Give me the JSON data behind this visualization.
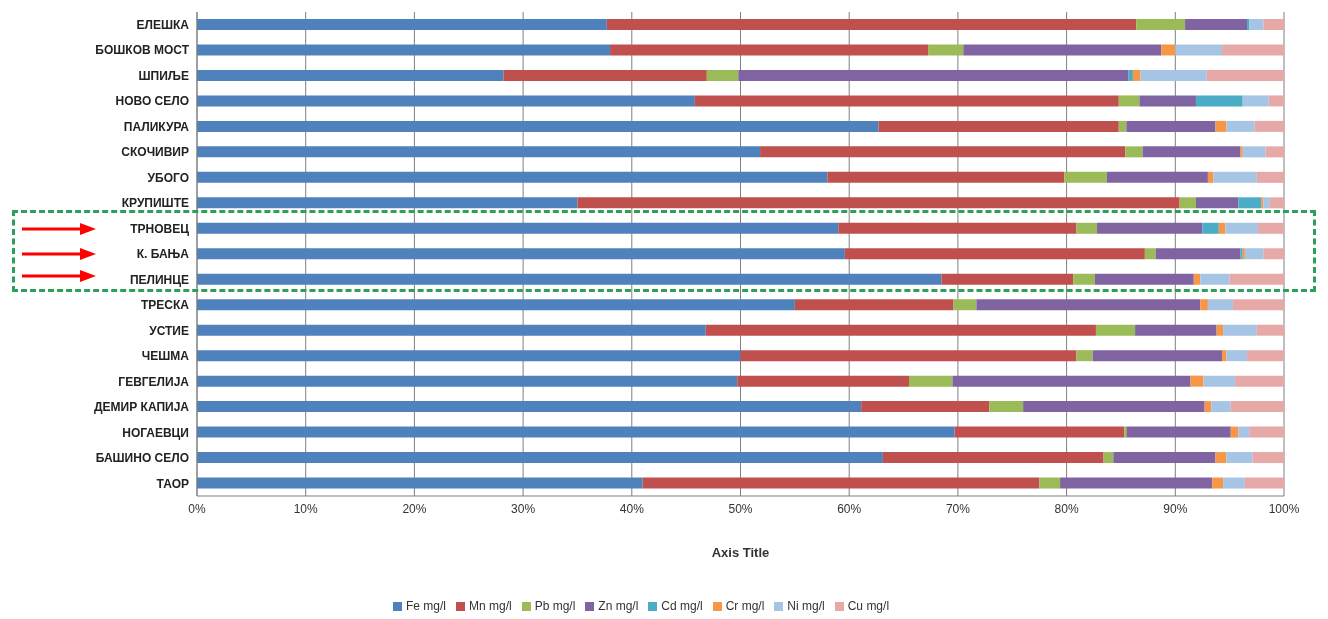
{
  "chart_data": {
    "type": "bar",
    "orientation": "horizontal",
    "stacked": true,
    "xlabel": "Axis Title",
    "categories": [
      "ЕЛЕШКА",
      "БОШКОВ МОСТ",
      "ШПИЉЕ",
      "НОВО СЕЛО",
      "ПАЛИКУРА",
      "СКОЧИВИР",
      "УБОГО",
      "КРУПИШТЕ",
      "ТРНОВЕЦ",
      "К. БАЊА",
      "ПЕЛИНЦЕ",
      "ТРЕСКА",
      "УСТИЕ",
      "ЧЕШМА",
      "ГЕВГЕЛИЈА",
      "ДЕМИР КАПИЈА",
      "НОГАЕВЦИ",
      "БАШИНО СЕЛО",
      "ТАОР"
    ],
    "series": [
      {
        "name": "Fe mg/l",
        "color": "#4f81bd",
        "values": [
          37.7,
          38.0,
          28.2,
          45.8,
          62.7,
          51.8,
          58.0,
          35.0,
          59.0,
          59.6,
          68.5,
          55.0,
          46.8,
          50.0,
          49.7,
          61.1,
          69.7,
          63.1,
          41.0
        ]
      },
      {
        "name": "Mn mg/l",
        "color": "#c0504d",
        "values": [
          48.7,
          29.3,
          18.7,
          39.0,
          22.1,
          33.6,
          21.8,
          55.4,
          21.9,
          27.6,
          12.1,
          14.6,
          35.9,
          30.9,
          15.8,
          11.8,
          15.6,
          20.3,
          36.5
        ]
      },
      {
        "name": "Pb mg/l",
        "color": "#9bbb59",
        "values": [
          4.5,
          3.2,
          2.9,
          1.9,
          0.7,
          1.6,
          3.9,
          1.5,
          1.9,
          1.0,
          2.0,
          2.1,
          3.6,
          1.5,
          4.0,
          3.1,
          0.2,
          0.9,
          1.9
        ]
      },
      {
        "name": "Zn mg/l",
        "color": "#8064a2",
        "values": [
          5.7,
          18.2,
          35.9,
          5.2,
          8.2,
          9.0,
          9.3,
          3.9,
          9.7,
          7.8,
          9.1,
          20.6,
          7.5,
          11.9,
          21.9,
          16.7,
          9.6,
          9.4,
          14.0
        ]
      },
      {
        "name": "Cd mg/l",
        "color": "#4bacc6",
        "values": [
          0.2,
          0,
          0.4,
          4.3,
          0,
          0,
          0,
          2.1,
          1.5,
          0.2,
          0,
          0,
          0,
          0,
          0,
          0,
          0,
          0,
          0
        ]
      },
      {
        "name": "Cr mg/l",
        "color": "#f79646",
        "values": [
          0,
          1.3,
          0.7,
          0,
          1.0,
          0.2,
          0.5,
          0.2,
          0.6,
          0.2,
          0.6,
          0.7,
          0.6,
          0.4,
          1.2,
          0.6,
          0.7,
          1.0,
          1.0
        ]
      },
      {
        "name": "Ni mg/l",
        "color": "#a6c4e4",
        "values": [
          1.3,
          4.3,
          6.1,
          2.4,
          2.6,
          2.1,
          4.0,
          0.6,
          3.0,
          1.7,
          2.7,
          2.3,
          3.1,
          1.9,
          2.9,
          1.8,
          1.0,
          2.4,
          2.0
        ]
      },
      {
        "name": "Cu mg/l",
        "color": "#e6a9a8",
        "values": [
          1.9,
          5.7,
          7.1,
          1.4,
          2.7,
          1.7,
          2.5,
          1.3,
          2.4,
          1.9,
          5.0,
          4.7,
          2.5,
          3.4,
          4.5,
          4.9,
          3.2,
          2.9,
          3.6
        ]
      }
    ],
    "xlim": [
      0,
      100
    ],
    "xticks": [
      {
        "value": 0,
        "label": "0%"
      },
      {
        "value": 10,
        "label": "10%"
      },
      {
        "value": 20,
        "label": "20%"
      },
      {
        "value": 30,
        "label": "30%"
      },
      {
        "value": 40,
        "label": "40%"
      },
      {
        "value": 50,
        "label": "50%"
      },
      {
        "value": 60,
        "label": "60%"
      },
      {
        "value": 70,
        "label": "70%"
      },
      {
        "value": 80,
        "label": "80%"
      },
      {
        "value": 90,
        "label": "90%"
      },
      {
        "value": 100,
        "label": "100%"
      }
    ],
    "grid": "x",
    "legend": "bottom"
  }
}
